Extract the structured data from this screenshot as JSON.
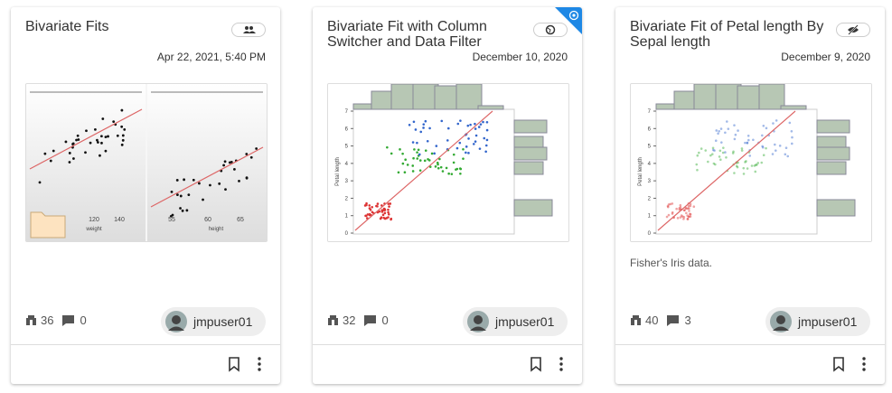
{
  "cards": [
    {
      "title": "Bivariate Fits",
      "date": "Apr 22, 2021, 5:40 PM",
      "views": 36,
      "comments": 0,
      "author": "jmpuser01",
      "thumbnail": {
        "left_x_ticks": [
          "120",
          "140"
        ],
        "left_x_label": "weight",
        "right_x_ticks": [
          "55",
          "60",
          "65"
        ],
        "right_x_label": "height"
      }
    },
    {
      "title": "Bivariate Fit with Column Switcher and Data Filter",
      "date": "December 10, 2020",
      "views": 32,
      "comments": 0,
      "author": "jmpuser01",
      "thumbnail": {
        "y_label": "Petal length",
        "y_ticks": [
          0,
          1,
          2,
          3,
          4,
          5,
          6,
          7
        ]
      }
    },
    {
      "title": "Bivariate Fit of Petal length By Sepal length",
      "date": "December 9, 2020",
      "description": "Fisher's Iris data.",
      "views": 40,
      "comments": 3,
      "author": "jmpuser01",
      "thumbnail": {
        "y_label": "Petal length",
        "y_ticks": [
          0,
          1,
          2,
          3,
          4,
          5,
          6,
          7
        ]
      }
    }
  ]
}
